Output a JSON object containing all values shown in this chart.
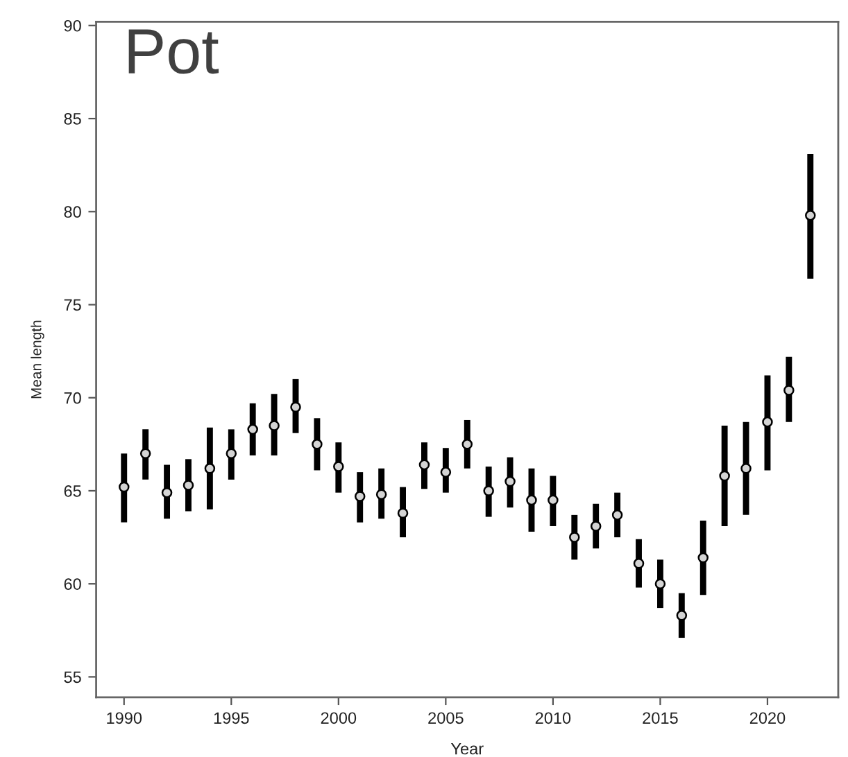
{
  "chart_data": {
    "type": "scatter",
    "title": "Pot",
    "xlabel": "Year",
    "ylabel": "Mean length",
    "x": [
      1990,
      1991,
      1992,
      1993,
      1994,
      1995,
      1996,
      1997,
      1998,
      1999,
      2000,
      2001,
      2002,
      2003,
      2004,
      2005,
      2006,
      2007,
      2008,
      2009,
      2010,
      2011,
      2012,
      2013,
      2014,
      2015,
      2016,
      2017,
      2018,
      2019,
      2020,
      2021,
      2022
    ],
    "series": [
      {
        "color": "#000000",
        "values": [
          65.2,
          67.0,
          64.9,
          65.3,
          66.2,
          67.0,
          68.3,
          68.5,
          69.5,
          67.5,
          66.3,
          64.7,
          64.8,
          63.8,
          66.4,
          66.0,
          67.5,
          65.0,
          65.5,
          64.5,
          64.5,
          62.5,
          63.1,
          63.7,
          61.1,
          60.0,
          58.3,
          61.4,
          65.8,
          66.2,
          68.7,
          70.4,
          79.8
        ],
        "errors": [
          [
            63.3,
            67.0
          ],
          [
            65.6,
            68.3
          ],
          [
            63.5,
            66.4
          ],
          [
            63.9,
            66.7
          ],
          [
            64.0,
            68.4
          ],
          [
            65.6,
            68.3
          ],
          [
            66.9,
            69.7
          ],
          [
            66.9,
            70.2
          ],
          [
            68.1,
            71.0
          ],
          [
            66.1,
            68.9
          ],
          [
            64.9,
            67.6
          ],
          [
            63.3,
            66.0
          ],
          [
            63.5,
            66.2
          ],
          [
            62.5,
            65.2
          ],
          [
            65.1,
            67.6
          ],
          [
            64.9,
            67.3
          ],
          [
            66.2,
            68.8
          ],
          [
            63.6,
            66.3
          ],
          [
            64.1,
            66.8
          ],
          [
            62.8,
            66.2
          ],
          [
            63.1,
            65.8
          ],
          [
            61.3,
            63.7
          ],
          [
            61.9,
            64.3
          ],
          [
            62.5,
            64.9
          ],
          [
            59.8,
            62.4
          ],
          [
            58.7,
            61.3
          ],
          [
            57.1,
            59.5
          ],
          [
            59.4,
            63.4
          ],
          [
            63.1,
            68.5
          ],
          [
            63.7,
            68.7
          ],
          [
            66.1,
            71.2
          ],
          [
            68.7,
            72.2
          ],
          [
            76.4,
            83.1
          ]
        ]
      }
    ],
    "xlim": [
      1988.7,
      2023.3
    ],
    "ylim": [
      53.9,
      90.2
    ],
    "xticks": [
      1990,
      1995,
      2000,
      2005,
      2010,
      2015,
      2020
    ],
    "yticks": [
      55,
      60,
      65,
      70,
      75,
      80,
      85,
      90
    ],
    "marker": "circle"
  }
}
